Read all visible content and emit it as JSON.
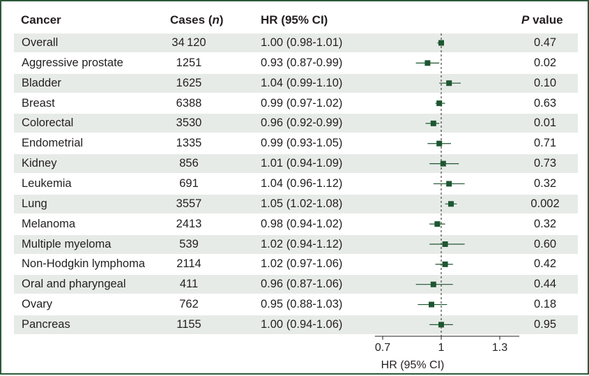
{
  "headers": {
    "cancer": "Cancer",
    "cases_prefix": "Cases (",
    "cases_n": "n",
    "cases_suffix": ")",
    "hr": "HR (95% CI)",
    "p_italic": "P",
    "p_rest": " value"
  },
  "rows": [
    {
      "name": "Overall",
      "cases": "34 120",
      "hr_text": "1.00 (0.98-1.01)",
      "p": "0.47"
    },
    {
      "name": "Aggressive prostate",
      "cases": "1251",
      "hr_text": "0.93 (0.87-0.99)",
      "p": "0.02"
    },
    {
      "name": "Bladder",
      "cases": "1625",
      "hr_text": "1.04 (0.99-1.10)",
      "p": "0.10"
    },
    {
      "name": "Breast",
      "cases": "6388",
      "hr_text": "0.99 (0.97-1.02)",
      "p": "0.63"
    },
    {
      "name": "Colorectal",
      "cases": "3530",
      "hr_text": "0.96 (0.92-0.99)",
      "p": "0.01"
    },
    {
      "name": "Endometrial",
      "cases": "1335",
      "hr_text": "0.99 (0.93-1.05)",
      "p": "0.71"
    },
    {
      "name": "Kidney",
      "cases": "856",
      "hr_text": "1.01 (0.94-1.09)",
      "p": "0.73"
    },
    {
      "name": "Leukemia",
      "cases": "691",
      "hr_text": "1.04 (0.96-1.12)",
      "p": "0.32"
    },
    {
      "name": "Lung",
      "cases": "3557",
      "hr_text": "1.05 (1.02-1.08)",
      "p": "0.002"
    },
    {
      "name": "Melanoma",
      "cases": "2413",
      "hr_text": "0.98 (0.94-1.02)",
      "p": "0.32"
    },
    {
      "name": "Multiple myeloma",
      "cases": "539",
      "hr_text": "1.02 (0.94-1.12)",
      "p": "0.60"
    },
    {
      "name": "Non-Hodgkin lymphoma",
      "cases": "2114",
      "hr_text": "1.02 (0.97-1.06)",
      "p": "0.42"
    },
    {
      "name": "Oral and pharyngeal",
      "cases": "411",
      "hr_text": "0.96 (0.87-1.06)",
      "p": "0.44"
    },
    {
      "name": "Ovary",
      "cases": "762",
      "hr_text": "0.95 (0.88-1.03)",
      "p": "0.18"
    },
    {
      "name": "Pancreas",
      "cases": "1155",
      "hr_text": "1.00 (0.94-1.06)",
      "p": "0.95"
    }
  ],
  "chart_data": {
    "type": "scatter",
    "xlabel": "HR (95% CI)",
    "xlim": [
      0.66,
      1.4
    ],
    "xticks": [
      0.7,
      1,
      1.3
    ],
    "xtick_labels": [
      "0.7",
      "1",
      "1.3"
    ],
    "reference_line": 1,
    "marker_color": "#1e5631",
    "categories": [
      "Overall",
      "Aggressive prostate",
      "Bladder",
      "Breast",
      "Colorectal",
      "Endometrial",
      "Kidney",
      "Leukemia",
      "Lung",
      "Melanoma",
      "Multiple myeloma",
      "Non-Hodgkin lymphoma",
      "Oral and pharyngeal",
      "Ovary",
      "Pancreas"
    ],
    "hr": [
      1.0,
      0.93,
      1.04,
      0.99,
      0.96,
      0.99,
      1.01,
      1.04,
      1.05,
      0.98,
      1.02,
      1.02,
      0.96,
      0.95,
      1.0
    ],
    "ci_low": [
      0.98,
      0.87,
      0.99,
      0.97,
      0.92,
      0.93,
      0.94,
      0.96,
      1.02,
      0.94,
      0.94,
      0.97,
      0.87,
      0.88,
      0.94
    ],
    "ci_high": [
      1.01,
      0.99,
      1.1,
      1.02,
      0.99,
      1.05,
      1.09,
      1.12,
      1.08,
      1.02,
      1.12,
      1.06,
      1.06,
      1.03,
      1.06
    ]
  }
}
